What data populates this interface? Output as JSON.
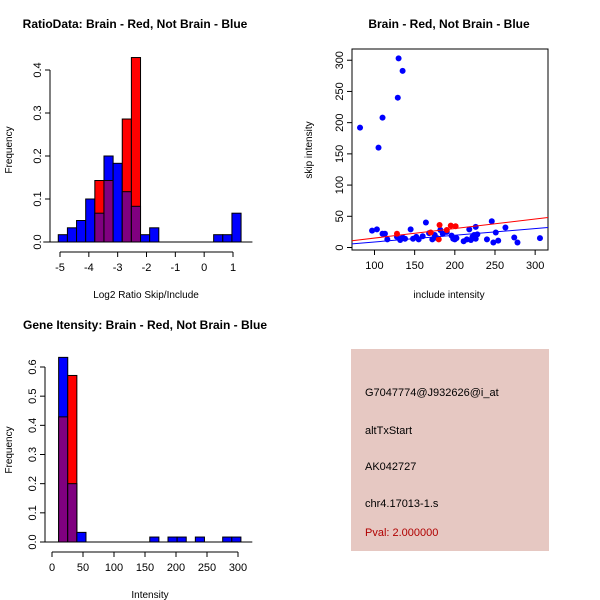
{
  "colors": {
    "red": "#ff0000",
    "blue": "#0000ff",
    "overlap": "#800080",
    "panel_bg": "#e6c8c2",
    "pval": "#b00000"
  },
  "chart_data": [
    {
      "type": "histogram",
      "title": "RatioData: Brain - Red, Not Brain - Blue",
      "xlabel": "Log2 Ratio Skip/Include",
      "ylabel": "Frequency",
      "xlim": [
        -5.4,
        1.5
      ],
      "ylim": [
        0,
        0.43
      ],
      "xticks": [
        "-5",
        "-4",
        "-3",
        "-2",
        "-1",
        "0",
        "1"
      ],
      "xtick_values": [
        -5,
        -4,
        -3,
        -2,
        -1,
        0,
        1
      ],
      "yticks": [
        "0.0",
        "0.1",
        "0.2",
        "0.3",
        "0.4"
      ],
      "ytick_values": [
        0,
        0.1,
        0.2,
        0.3,
        0.4
      ],
      "bin_start": -5.06,
      "bin_width": 0.317,
      "series": [
        {
          "name": "Not Brain",
          "color": "blue",
          "values": [
            0.017,
            0.033,
            0.05,
            0.1,
            0.067,
            0.2,
            0.183,
            0.117,
            0.083,
            0.017,
            0.033,
            0,
            0,
            0,
            0,
            0,
            0,
            0.017,
            0.017,
            0.067
          ]
        },
        {
          "name": "Brain",
          "color": "red",
          "values": [
            0,
            0,
            0,
            0,
            0.143,
            0.143,
            0,
            0.286,
            0.429,
            0,
            0,
            0,
            0,
            0,
            0,
            0,
            0,
            0,
            0,
            0
          ]
        }
      ]
    },
    {
      "type": "scatter",
      "title": "Brain - Red, Not Brain - Blue",
      "xlabel": "include intensity",
      "ylabel": "skip intensity",
      "xlim": [
        72,
        316
      ],
      "ylim": [
        -4,
        318
      ],
      "xticks": [
        "100",
        "150",
        "200",
        "250",
        "300"
      ],
      "xtick_values": [
        100,
        150,
        200,
        250,
        300
      ],
      "yticks": [
        "0",
        "50",
        "100",
        "150",
        "200",
        "250",
        "300"
      ],
      "ytick_values": [
        0,
        50,
        100,
        150,
        200,
        250,
        300
      ],
      "series": [
        {
          "name": "Not Brain",
          "color": "blue",
          "points": [
            [
              82,
              192
            ],
            [
              105,
              160
            ],
            [
              110,
              208
            ],
            [
              129,
              240
            ],
            [
              130,
              303
            ],
            [
              135,
              283
            ],
            [
              97,
              27
            ],
            [
              103,
              29
            ],
            [
              110,
              22
            ],
            [
              113,
              22
            ],
            [
              116,
              13
            ],
            [
              128,
              17
            ],
            [
              132,
              12
            ],
            [
              135,
              16
            ],
            [
              138,
              14
            ],
            [
              145,
              29
            ],
            [
              148,
              14
            ],
            [
              152,
              17
            ],
            [
              155,
              13
            ],
            [
              160,
              18
            ],
            [
              164,
              40
            ],
            [
              168,
              23
            ],
            [
              172,
              13
            ],
            [
              175,
              20
            ],
            [
              178,
              15
            ],
            [
              182,
              28
            ],
            [
              185,
              22
            ],
            [
              190,
              25
            ],
            [
              196,
              19
            ],
            [
              198,
              14
            ],
            [
              200,
              13
            ],
            [
              202,
              15
            ],
            [
              211,
              10
            ],
            [
              215,
              13
            ],
            [
              218,
              29
            ],
            [
              220,
              12
            ],
            [
              222,
              17
            ],
            [
              224,
              20
            ],
            [
              226,
              33
            ],
            [
              226,
              14
            ],
            [
              228,
              21
            ],
            [
              240,
              13
            ],
            [
              246,
              42
            ],
            [
              248,
              8
            ],
            [
              251,
              24
            ],
            [
              254,
              11
            ],
            [
              263,
              32
            ],
            [
              274,
              16
            ],
            [
              278,
              8
            ],
            [
              306,
              15
            ]
          ],
          "fit": {
            "intercept": -1.8,
            "slope": 0.107
          }
        },
        {
          "name": "Brain",
          "color": "red",
          "points": [
            [
              128,
              22
            ],
            [
              170,
              24
            ],
            [
              180,
              13
            ],
            [
              181,
              36
            ],
            [
              190,
              28
            ],
            [
              195,
              35
            ],
            [
              201,
              34
            ]
          ],
          "fit": {
            "intercept": -0.2,
            "slope": 0.153
          }
        }
      ]
    },
    {
      "type": "histogram",
      "title": "Gene Itensity: Brain - Red, Not Brain - Blue",
      "xlabel": "Intensity",
      "ylabel": "Frequency",
      "xlim": [
        -5,
        315
      ],
      "ylim": [
        0,
        0.64
      ],
      "xticks": [
        "0",
        "50",
        "100",
        "150",
        "200",
        "250",
        "300"
      ],
      "xtick_values": [
        0,
        50,
        100,
        150,
        200,
        250,
        300
      ],
      "yticks": [
        "0.0",
        "0.1",
        "0.2",
        "0.3",
        "0.4",
        "0.5",
        "0.6"
      ],
      "ytick_values": [
        0,
        0.1,
        0.2,
        0.3,
        0.4,
        0.5,
        0.6
      ],
      "bin_start": 10.7,
      "bin_width": 14.7,
      "series": [
        {
          "name": "Not Brain",
          "color": "blue",
          "values": [
            0.633,
            0.2,
            0.033,
            0,
            0,
            0,
            0,
            0,
            0,
            0,
            0.017,
            0,
            0.017,
            0.017,
            0,
            0.017,
            0,
            0,
            0.017,
            0.017
          ]
        },
        {
          "name": "Brain",
          "color": "red",
          "values": [
            0.429,
            0.571,
            0,
            0,
            0,
            0,
            0,
            0,
            0,
            0,
            0,
            0,
            0,
            0,
            0,
            0,
            0,
            0,
            0,
            0
          ]
        }
      ]
    }
  ],
  "info_panel": {
    "lines": [
      "G7047774@J932626@i_at",
      "altTxStart",
      "AK042727",
      "chr4.17013-1.s"
    ],
    "pval": "Pval: 2.000000"
  }
}
